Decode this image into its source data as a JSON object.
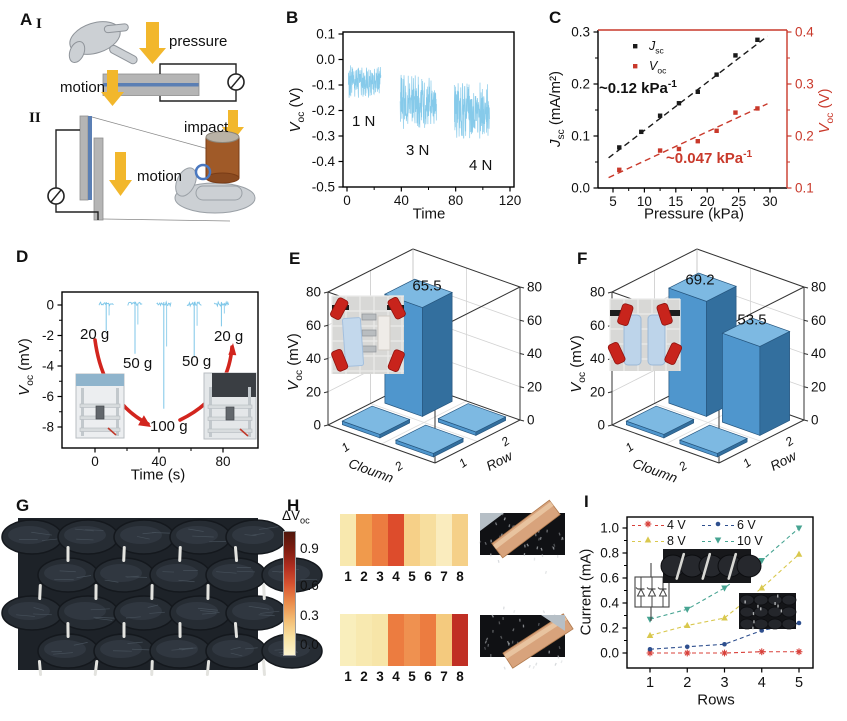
{
  "panels": {
    "a": {
      "letter": "A",
      "numeral_1": "I",
      "numeral_2": "II",
      "pressure_label": "pressure",
      "motion_label_1": "motion",
      "motion_label_2": "motion",
      "impact_label": "impact"
    },
    "b": {
      "letter": "B",
      "ylabel_v": "V",
      "ylabel_sub": "oc",
      "ylabel_unit": " (V)",
      "xlabel": "Time"
    },
    "c": {
      "letter": "C",
      "ylabel_left_j": "J",
      "ylabel_left_sub": "sc",
      "ylabel_left_unit": " (mA/m²)",
      "ylabel_right_v": "V",
      "ylabel_right_sub": "oc",
      "ylabel_right_unit": " (V)",
      "xlabel": "Pressure (kPa)",
      "legend_j": "J",
      "legend_j_sub": "sc",
      "legend_v": "V",
      "legend_v_sub": "oc"
    },
    "d": {
      "letter": "D",
      "ylabel_v": "V",
      "ylabel_sub": "oc",
      "ylabel_unit": " (mV)",
      "xlabel": "Time (s)"
    },
    "e": {
      "letter": "E",
      "zlabel_v": "V",
      "zlabel_sub": "oc",
      "zlabel_unit": " (mV)"
    },
    "f": {
      "letter": "F",
      "zlabel_v": "V",
      "zlabel_sub": "oc",
      "zlabel_unit": " (mV)"
    },
    "g": {
      "letter": "G"
    },
    "h": {
      "letter": "H"
    },
    "i": {
      "letter": "I",
      "ylabel": "Current (mA)",
      "xlabel": "Rows"
    }
  },
  "chart_data": [
    {
      "panel": "B",
      "type": "line",
      "xlabel": "Time",
      "xlim": [
        0,
        120
      ],
      "xticks": [
        0,
        40,
        80,
        120
      ],
      "ylim": [
        -0.5,
        0.1
      ],
      "yticks": [
        0.1,
        0.0,
        -0.1,
        -0.2,
        -0.3,
        -0.4,
        -0.5
      ],
      "line_color": "#7cc6e8",
      "labels": [
        "1 N",
        "3 N",
        "4 N"
      ],
      "series": [
        {
          "name": "1 N",
          "t_range": [
            1,
            25
          ],
          "v_range": [
            -0.15,
            -0.02
          ]
        },
        {
          "name": "3 N",
          "t_range": [
            39,
            66
          ],
          "v_range": [
            -0.28,
            -0.06
          ]
        },
        {
          "name": "4 N",
          "t_range": [
            79,
            105
          ],
          "v_range": [
            -0.31,
            -0.09
          ]
        }
      ]
    },
    {
      "panel": "C",
      "type": "scatter",
      "xlabel": "Pressure (kPa)",
      "xlim": [
        3,
        32
      ],
      "xticks": [
        5,
        10,
        15,
        20,
        25,
        30
      ],
      "ylim_left": [
        0.0,
        0.3
      ],
      "yticks_left": [
        0.0,
        0.1,
        0.2,
        0.3
      ],
      "ylim_right": [
        0.1,
        0.4
      ],
      "yticks_right": [
        0.1,
        0.2,
        0.3,
        0.4
      ],
      "right_axis_color": "#c9392b",
      "series": [
        {
          "name": "Jsc",
          "color": "#1a1a1a",
          "axis": "left",
          "x": [
            6,
            9.5,
            12.5,
            15.5,
            18.5,
            21.5,
            24.5,
            28
          ],
          "y": [
            0.078,
            0.108,
            0.139,
            0.163,
            0.185,
            0.218,
            0.255,
            0.285
          ],
          "fit": {
            "x": [
              4.3,
              29.6
            ],
            "y": [
              0.058,
              0.292
            ]
          }
        },
        {
          "name": "Voc",
          "color": "#c9392b",
          "axis": "right",
          "x": [
            6,
            12.5,
            15.5,
            18.5,
            21.5,
            24.5,
            28
          ],
          "y": [
            0.135,
            0.172,
            0.175,
            0.19,
            0.21,
            0.245,
            0.253
          ],
          "fit": {
            "x": [
              4.3,
              29.6
            ],
            "y": [
              0.12,
              0.262
            ]
          }
        }
      ],
      "slopes": {
        "black": "~0.12 kPa",
        "black_sup": "-1",
        "red": "~0.047 kPa",
        "red_sup": "-1"
      }
    },
    {
      "panel": "D",
      "type": "line",
      "xlabel": "Time (s)",
      "xlim": [
        -8,
        94
      ],
      "xticks": [
        0,
        40,
        80
      ],
      "ylim": [
        -9.4,
        0.9
      ],
      "yticks": [
        0,
        -2,
        -4,
        -6,
        -8
      ],
      "line_color": "#7cc6e8",
      "spikes": [
        {
          "t": 7,
          "depth": -1.7,
          "label": "20 g"
        },
        {
          "t": 25,
          "depth": -3.2,
          "label": "50 g"
        },
        {
          "t": 43,
          "depth": -6.8,
          "label": "100 g"
        },
        {
          "t": 62,
          "depth": -3.4,
          "label": "50 g"
        },
        {
          "t": 79,
          "depth": -1.4,
          "label": "20 g"
        }
      ]
    },
    {
      "panel": "E",
      "type": "bar3d",
      "xlabel": "Cloumn",
      "ylabel": "Row",
      "zlim": [
        0,
        80
      ],
      "zticks": [
        0,
        20,
        40,
        60,
        80
      ],
      "xticks": [
        1,
        2
      ],
      "yticks": [
        1,
        2
      ],
      "bar_color_top": "#7db9e2",
      "bar_color_left": "#4f96cd",
      "bar_color_right": "#336f9e",
      "bars": [
        {
          "column": 1,
          "row": 2,
          "value": 65.5,
          "label": "65.5"
        },
        {
          "column": 2,
          "row": 2,
          "value": 0
        },
        {
          "column": 1,
          "row": 1,
          "value": 0
        },
        {
          "column": 2,
          "row": 1,
          "value": 0
        }
      ]
    },
    {
      "panel": "F",
      "type": "bar3d",
      "xlabel": "Cloumn",
      "ylabel": "Row",
      "zlim": [
        0,
        80
      ],
      "zticks": [
        0,
        20,
        40,
        60,
        80
      ],
      "xticks": [
        1,
        2
      ],
      "yticks": [
        1,
        2
      ],
      "bar_color_top": "#7db9e2",
      "bar_color_left": "#4f96cd",
      "bar_color_right": "#336f9e",
      "bars": [
        {
          "column": 1,
          "row": 2,
          "value": 69.2,
          "label": "69.2"
        },
        {
          "column": 2,
          "row": 2,
          "value": 53.5,
          "label": "53.5"
        },
        {
          "column": 1,
          "row": 1,
          "value": 0
        },
        {
          "column": 2,
          "row": 1,
          "value": 0
        }
      ]
    },
    {
      "panel": "H",
      "type": "heatmap",
      "colorbar": {
        "label": "ΔV",
        "label_sub": "oc",
        "ticks": [
          "0.9",
          "0.6",
          "0.3",
          "0.0"
        ],
        "gradient_top_to_bottom": [
          "#4f160b",
          "#7e1c10",
          "#b22e20",
          "#d85431",
          "#ea8c4b",
          "#f3bd74",
          "#f9e3a3",
          "#fdf4cf"
        ]
      },
      "strips": [
        {
          "x_labels": [
            "1",
            "2",
            "3",
            "4",
            "5",
            "6",
            "7",
            "8"
          ],
          "values": [
            0.08,
            0.45,
            0.52,
            0.68,
            0.25,
            0.18,
            0.1,
            0.25
          ],
          "colors": [
            "#f8e8ae",
            "#f09a4c",
            "#ec7c40",
            "#dd4c2c",
            "#f6d088",
            "#f7de9e",
            "#faecbe",
            "#f5d088"
          ]
        },
        {
          "x_labels": [
            "1",
            "2",
            "3",
            "4",
            "5",
            "6",
            "7",
            "8"
          ],
          "values": [
            0.06,
            0.08,
            0.1,
            0.52,
            0.48,
            0.52,
            0.3,
            0.8
          ],
          "colors": [
            "#f9eebc",
            "#f8e9b0",
            "#f7e5a8",
            "#ec7c40",
            "#ef9150",
            "#ec7c40",
            "#f4ca7e",
            "#c02f24"
          ]
        }
      ]
    },
    {
      "panel": "I",
      "type": "line",
      "xlabel": "Rows",
      "ylabel": "Current (mA)",
      "xlim": [
        0.6,
        5.5
      ],
      "xticks": [
        1,
        2,
        3,
        4,
        5
      ],
      "ylim": [
        -0.07,
        1.08
      ],
      "yticks": [
        0.0,
        0.2,
        0.4,
        0.6,
        0.8,
        1.0
      ],
      "x": [
        1,
        2,
        3,
        4,
        5
      ],
      "series": [
        {
          "name": "4 V",
          "color": "#d8403a",
          "marker": "star",
          "values": [
            0.0,
            0.0,
            0.0,
            0.01,
            0.01
          ]
        },
        {
          "name": "6 V",
          "color": "#2e4f8e",
          "marker": "circle",
          "values": [
            0.03,
            0.05,
            0.07,
            0.18,
            0.24
          ]
        },
        {
          "name": "8 V",
          "color": "#d9c84e",
          "marker": "triangle-up",
          "values": [
            0.14,
            0.22,
            0.28,
            0.52,
            0.79
          ]
        },
        {
          "name": "10 V",
          "color": "#47a492",
          "marker": "triangle-down",
          "values": [
            0.27,
            0.35,
            0.52,
            0.74,
            1.0
          ]
        }
      ]
    }
  ]
}
